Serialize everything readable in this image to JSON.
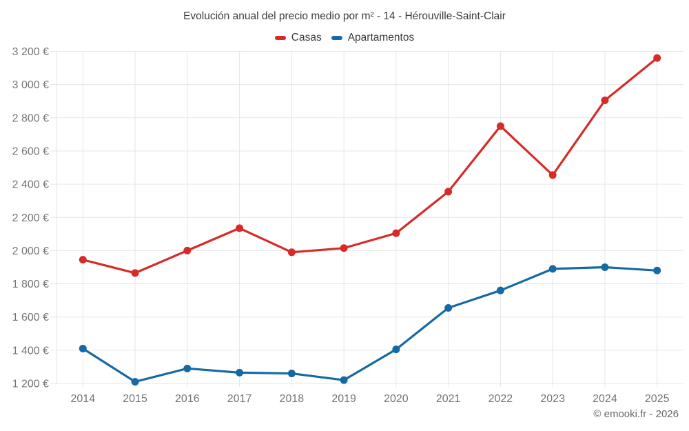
{
  "chart_data": {
    "type": "line",
    "title": "Evolución anual del precio medio por m² - 14 - Hérouville-Saint-Clair",
    "categories": [
      "2014",
      "2015",
      "2016",
      "2017",
      "2018",
      "2019",
      "2020",
      "2021",
      "2022",
      "2023",
      "2024",
      "2025"
    ],
    "series": [
      {
        "name": "Casas",
        "color": "#d62b27",
        "values": [
          1945,
          1865,
          2000,
          2135,
          1990,
          2015,
          2105,
          2355,
          2750,
          2455,
          2905,
          3160
        ]
      },
      {
        "name": "Apartamentos",
        "color": "#1769a3",
        "values": [
          1410,
          1210,
          1290,
          1265,
          1260,
          1220,
          1405,
          1655,
          1760,
          1890,
          1900,
          1880
        ]
      }
    ],
    "ylim": [
      1200,
      3200
    ],
    "ytick_step": 200,
    "y_unit": "€",
    "grid": true,
    "legend_position": "top",
    "axis_label_color": "#757575",
    "grid_color": "#e6e6e6"
  },
  "footer": {
    "text": "© emooki.fr - 2026"
  }
}
